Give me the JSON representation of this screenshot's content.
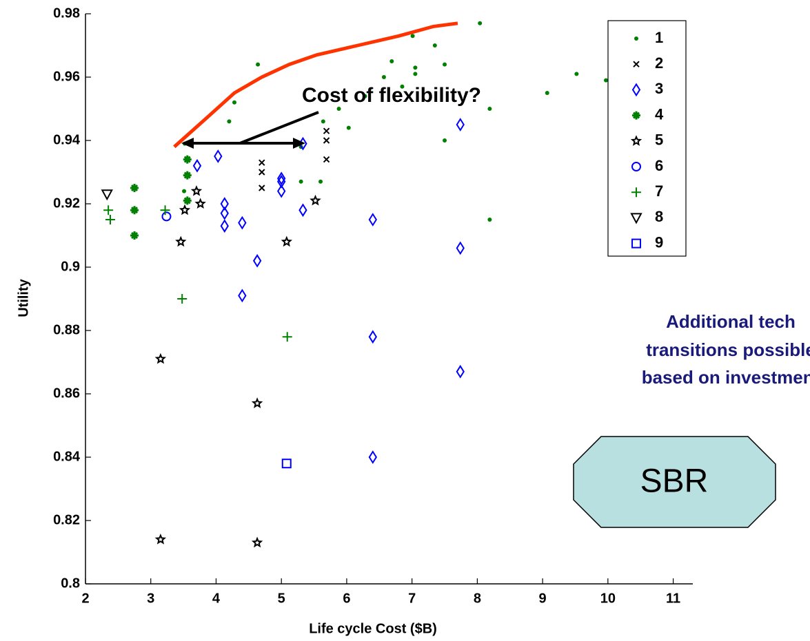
{
  "chart_data": {
    "type": "scatter",
    "xlabel": "Life cycle Cost ($B)",
    "ylabel": "Utility",
    "xlim": [
      2,
      11.3
    ],
    "ylim": [
      0.8,
      0.98
    ],
    "xticks": [
      2,
      3,
      4,
      5,
      6,
      7,
      8,
      9,
      10,
      11
    ],
    "yticks": [
      0.8,
      0.82,
      0.84,
      0.86,
      0.88,
      0.9,
      0.92,
      0.94,
      0.96,
      0.98
    ],
    "annotations": [
      "Cost of flexibility?",
      "Additional tech",
      "transitions possible",
      "based on investment",
      "SBR"
    ],
    "curve": {
      "color": "#ff3300",
      "x": [
        3.36,
        3.85,
        4.28,
        4.7,
        5.12,
        5.54,
        6.17,
        6.8,
        7.33,
        7.7
      ],
      "y": [
        0.938,
        0.947,
        0.955,
        0.96,
        0.964,
        0.967,
        0.97,
        0.973,
        0.976,
        0.977
      ]
    },
    "series": [
      {
        "name": "1",
        "color": "#008000",
        "marker": "dot",
        "x": [
          4.64,
          4.28,
          4.2,
          3.52,
          3.51,
          5.3,
          5.64,
          5.6,
          5.3,
          5.88,
          6.03,
          6.28,
          6.57,
          6.69,
          6.85,
          7.01,
          7.05,
          7.05,
          7.35,
          7.5,
          7.5,
          8.04,
          8.19,
          8.19,
          9.07,
          9.52,
          9.97
        ],
        "values": [
          0.964,
          0.952,
          0.946,
          0.939,
          0.924,
          0.938,
          0.946,
          0.927,
          0.927,
          0.95,
          0.944,
          0.954,
          0.96,
          0.965,
          0.957,
          0.973,
          0.963,
          0.961,
          0.97,
          0.964,
          0.94,
          0.977,
          0.95,
          0.915,
          0.955,
          0.961,
          0.959
        ]
      },
      {
        "name": "2",
        "color": "#000000",
        "marker": "x",
        "x": [
          4.7,
          4.7,
          4.7,
          5.69,
          5.69,
          5.69
        ],
        "values": [
          0.933,
          0.93,
          0.925,
          0.943,
          0.94,
          0.934
        ]
      },
      {
        "name": "3",
        "color": "#0000ff",
        "marker": "diamond",
        "x": [
          7.74,
          5.33,
          4.03,
          3.71,
          5.0,
          5.0,
          5.0,
          5.33,
          4.13,
          4.13,
          4.13,
          4.4,
          6.4,
          7.74,
          4.63,
          4.4,
          6.4,
          7.74,
          6.4
        ],
        "values": [
          0.945,
          0.939,
          0.935,
          0.932,
          0.928,
          0.927,
          0.924,
          0.918,
          0.92,
          0.917,
          0.913,
          0.914,
          0.915,
          0.906,
          0.902,
          0.891,
          0.878,
          0.867,
          0.84
        ]
      },
      {
        "name": "4",
        "color": "#008000",
        "marker": "asterisk",
        "x": [
          2.75,
          2.75,
          2.75,
          3.56,
          3.56,
          3.56
        ],
        "values": [
          0.925,
          0.918,
          0.91,
          0.934,
          0.929,
          0.921
        ]
      },
      {
        "name": "5",
        "color": "#000000",
        "marker": "star",
        "x": [
          3.52,
          3.7,
          3.76,
          3.46,
          3.15,
          3.15,
          4.63,
          4.63,
          5.08,
          5.52
        ],
        "values": [
          0.918,
          0.924,
          0.92,
          0.908,
          0.871,
          0.814,
          0.857,
          0.813,
          0.908,
          0.921
        ]
      },
      {
        "name": "6",
        "color": "#0000ff",
        "marker": "circle",
        "x": [
          3.24
        ],
        "values": [
          0.916
        ]
      },
      {
        "name": "7",
        "color": "#008000",
        "marker": "plus",
        "x": [
          2.35,
          2.38,
          3.22,
          3.48,
          5.09
        ],
        "values": [
          0.918,
          0.915,
          0.918,
          0.89,
          0.878
        ]
      },
      {
        "name": "8",
        "color": "#000000",
        "marker": "triangle-down",
        "x": [
          2.33
        ],
        "values": [
          0.923
        ]
      },
      {
        "name": "9",
        "color": "#0000ff",
        "marker": "square",
        "x": [
          5.08
        ],
        "values": [
          0.838
        ]
      }
    ]
  }
}
